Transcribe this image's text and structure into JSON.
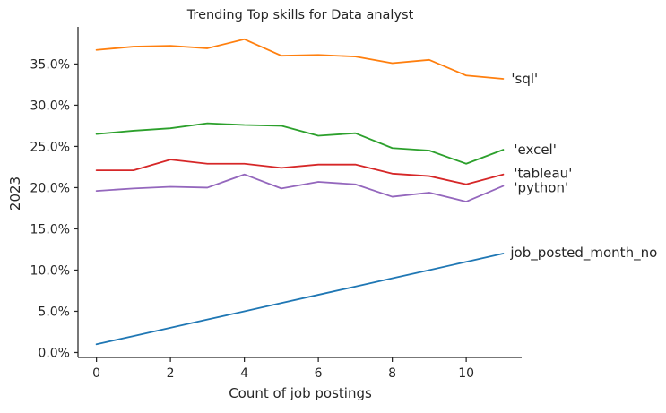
{
  "chart_data": {
    "type": "line",
    "title": "Trending Top skills for Data analyst",
    "xlabel": "Count of job postings",
    "ylabel": "2023",
    "x": [
      0,
      1,
      2,
      3,
      4,
      5,
      6,
      7,
      8,
      9,
      10,
      11
    ],
    "xlim": [
      -0.5,
      11.5
    ],
    "ylim": [
      -0.6,
      39.5
    ],
    "x_ticks": [
      0,
      2,
      4,
      6,
      8,
      10
    ],
    "y_ticks": [
      0,
      5,
      10,
      15,
      20,
      25,
      30,
      35
    ],
    "y_tick_labels": [
      "0.0%",
      "5.0%",
      "10.0%",
      "15.0%",
      "20.0%",
      "25.0%",
      "30.0%",
      "35.0%"
    ],
    "grid": false,
    "legend": "none",
    "series": [
      {
        "name": "'sql'",
        "color": "#ff7f0e",
        "values": [
          36.7,
          37.1,
          37.2,
          36.9,
          38.0,
          36.0,
          36.1,
          35.9,
          35.1,
          35.5,
          33.6,
          33.2
        ]
      },
      {
        "name": "'excel'",
        "color": "#2ca02c",
        "values": [
          26.5,
          26.9,
          27.2,
          27.8,
          27.6,
          27.5,
          26.3,
          26.6,
          24.8,
          24.5,
          22.9,
          24.6
        ]
      },
      {
        "name": "'tableau'",
        "color": "#d62728",
        "values": [
          22.1,
          22.1,
          23.4,
          22.9,
          22.9,
          22.4,
          22.8,
          22.8,
          21.7,
          21.4,
          20.4,
          21.6
        ]
      },
      {
        "name": "'python'",
        "color": "#9467bd",
        "values": [
          19.6,
          19.9,
          20.1,
          20.0,
          21.6,
          19.9,
          20.7,
          20.4,
          18.9,
          19.4,
          18.3,
          20.2
        ]
      },
      {
        "name": "job_posted_month_no",
        "color": "#1f77b4",
        "values": [
          1,
          2,
          3,
          4,
          5,
          6,
          7,
          8,
          9,
          10,
          11,
          12
        ]
      }
    ]
  }
}
